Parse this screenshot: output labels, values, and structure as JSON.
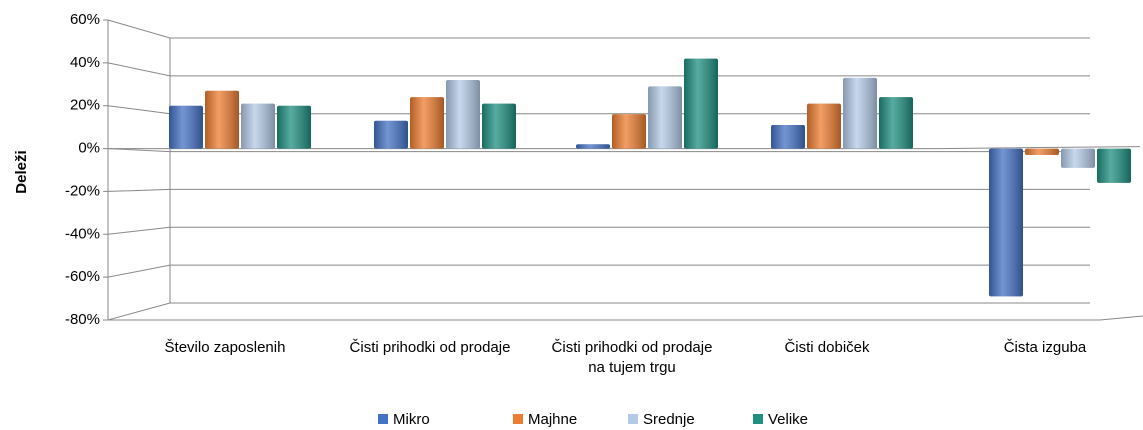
{
  "chart_data": {
    "type": "bar",
    "y_label": "Deleži",
    "categories": [
      "Število zaposlenih",
      "Čisti prihodki od prodaje",
      "Čisti prihodki od prodaje na tujem trgu",
      "Čisti dobiček",
      "Čista izguba"
    ],
    "series": [
      {
        "name": "Mikro",
        "color": "#4472c4",
        "values": [
          20,
          13,
          2,
          11,
          -69
        ]
      },
      {
        "name": "Majhne",
        "color": "#ed7d31",
        "values": [
          27,
          24,
          16,
          21,
          -3
        ]
      },
      {
        "name": "Srednje",
        "color": "#b4cbe8",
        "values": [
          21,
          32,
          29,
          33,
          -9
        ]
      },
      {
        "name": "Velike",
        "color": "#1f8f80",
        "values": [
          20,
          21,
          42,
          24,
          -16
        ]
      }
    ],
    "ylim": [
      -80,
      60
    ],
    "yticks": [
      {
        "value": -80,
        "label": "-80%"
      },
      {
        "value": -60,
        "label": "-60%"
      },
      {
        "value": -40,
        "label": "-40%"
      },
      {
        "value": -20,
        "label": "-20%"
      },
      {
        "value": 0,
        "label": "0%"
      },
      {
        "value": 20,
        "label": "20%"
      },
      {
        "value": 40,
        "label": "40%"
      },
      {
        "value": 60,
        "label": "60%"
      }
    ],
    "grid": true,
    "legend": "bottom"
  }
}
